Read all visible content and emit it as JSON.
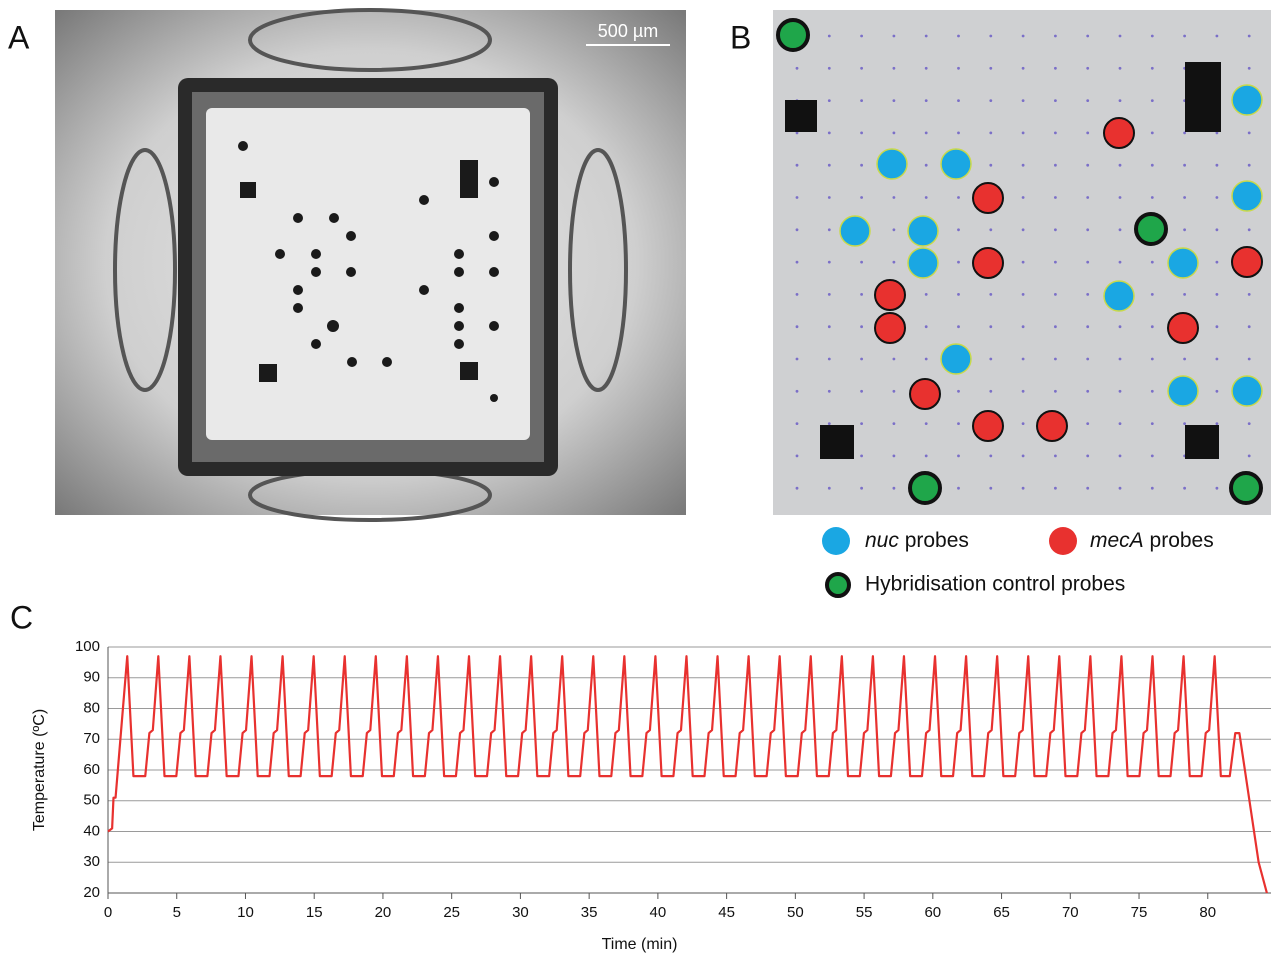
{
  "panel_a": {
    "label": "A",
    "scale_bar": "500 µm"
  },
  "panel_b": {
    "label": "B",
    "legend": [
      {
        "gene": "nuc",
        "text": "probes"
      },
      {
        "gene": "mecA",
        "text": "probes"
      },
      {
        "text": "Hybridisation control probes"
      }
    ]
  },
  "panel_c": {
    "label": "C"
  },
  "chart_data": {
    "type": "line",
    "x_label": "Time (min)",
    "y_label": "Temperature (ºC)",
    "xlim": [
      0,
      84.6
    ],
    "ylim": [
      20,
      100
    ],
    "xticks": [
      0,
      5,
      10,
      15,
      20,
      25,
      30,
      35,
      40,
      45,
      50,
      55,
      60,
      65,
      70,
      75,
      80
    ],
    "yticks": [
      20,
      30,
      40,
      50,
      60,
      70,
      80,
      90,
      100
    ],
    "grid": true,
    "series": [
      {
        "color": "#e8312f",
        "x": [
          0,
          0.3,
          0.4,
          0.55,
          1.4,
          1.85,
          2.71,
          3.01,
          3.26,
          3.66,
          4.11,
          4.97,
          5.27,
          5.52,
          5.92,
          6.37,
          7.23,
          7.53,
          7.78,
          8.18,
          8.63,
          9.49,
          9.79,
          10.04,
          10.44,
          10.89,
          11.75,
          12.05,
          12.3,
          12.7,
          13.15,
          14.01,
          14.31,
          14.56,
          14.96,
          15.41,
          16.27,
          16.57,
          16.82,
          17.22,
          17.67,
          18.53,
          18.83,
          19.08,
          19.48,
          19.93,
          20.79,
          21.09,
          21.34,
          21.74,
          22.19,
          23.05,
          23.35,
          23.6,
          24,
          24.45,
          25.31,
          25.61,
          25.86,
          26.26,
          26.71,
          27.57,
          27.87,
          28.12,
          28.52,
          28.97,
          29.83,
          30.13,
          30.38,
          30.78,
          31.23,
          32.09,
          32.39,
          32.64,
          33.04,
          33.49,
          34.35,
          34.65,
          34.9,
          35.3,
          35.75,
          36.61,
          36.91,
          37.16,
          37.56,
          38.01,
          38.87,
          39.17,
          39.42,
          39.82,
          40.27,
          41.13,
          41.43,
          41.68,
          42.08,
          42.53,
          43.39,
          43.69,
          43.94,
          44.34,
          44.79,
          45.65,
          45.95,
          46.2,
          46.6,
          47.05,
          47.91,
          48.21,
          48.46,
          48.86,
          49.31,
          50.17,
          50.47,
          50.72,
          51.12,
          51.57,
          52.43,
          52.73,
          52.98,
          53.38,
          53.83,
          54.69,
          54.99,
          55.24,
          55.64,
          56.09,
          56.95,
          57.25,
          57.5,
          57.9,
          58.35,
          59.21,
          59.51,
          59.76,
          60.16,
          60.61,
          61.47,
          61.77,
          62.02,
          62.42,
          62.87,
          63.73,
          64.03,
          64.28,
          64.68,
          65.13,
          65.99,
          66.29,
          66.54,
          66.94,
          67.39,
          68.25,
          68.55,
          68.8,
          69.2,
          69.65,
          70.51,
          70.81,
          71.06,
          71.46,
          71.91,
          72.77,
          73.07,
          73.32,
          73.72,
          74.17,
          75.03,
          75.33,
          75.58,
          75.98,
          76.43,
          77.29,
          77.59,
          77.84,
          78.24,
          78.69,
          79.55,
          79.85,
          80.1,
          80.5,
          80.95,
          81.6,
          82,
          82.3,
          82.7,
          83.2,
          83.7,
          84.3
        ],
        "values": [
          40,
          41,
          51,
          51,
          97,
          58,
          58,
          72,
          73,
          97,
          58,
          58,
          72,
          73,
          97,
          58,
          58,
          72,
          73,
          97,
          58,
          58,
          72,
          73,
          97,
          58,
          58,
          72,
          73,
          97,
          58,
          58,
          72,
          73,
          97,
          58,
          58,
          72,
          73,
          97,
          58,
          58,
          72,
          73,
          97,
          58,
          58,
          72,
          73,
          97,
          58,
          58,
          72,
          73,
          97,
          58,
          58,
          72,
          73,
          97,
          58,
          58,
          72,
          73,
          97,
          58,
          58,
          72,
          73,
          97,
          58,
          58,
          72,
          73,
          97,
          58,
          58,
          72,
          73,
          97,
          58,
          58,
          72,
          73,
          97,
          58,
          58,
          72,
          73,
          97,
          58,
          58,
          72,
          73,
          97,
          58,
          58,
          72,
          73,
          97,
          58,
          58,
          72,
          73,
          97,
          58,
          58,
          72,
          73,
          97,
          58,
          58,
          72,
          73,
          97,
          58,
          58,
          72,
          73,
          97,
          58,
          58,
          72,
          73,
          97,
          58,
          58,
          72,
          73,
          97,
          58,
          58,
          72,
          73,
          97,
          58,
          58,
          72,
          73,
          97,
          58,
          58,
          72,
          73,
          97,
          58,
          58,
          72,
          73,
          97,
          58,
          58,
          72,
          73,
          97,
          58,
          58,
          72,
          73,
          97,
          58,
          58,
          72,
          73,
          97,
          58,
          58,
          72,
          73,
          97,
          58,
          58,
          72,
          73,
          97,
          58,
          58,
          72,
          73,
          97,
          58,
          58,
          72,
          72,
          60,
          45,
          30,
          20
        ]
      }
    ]
  }
}
